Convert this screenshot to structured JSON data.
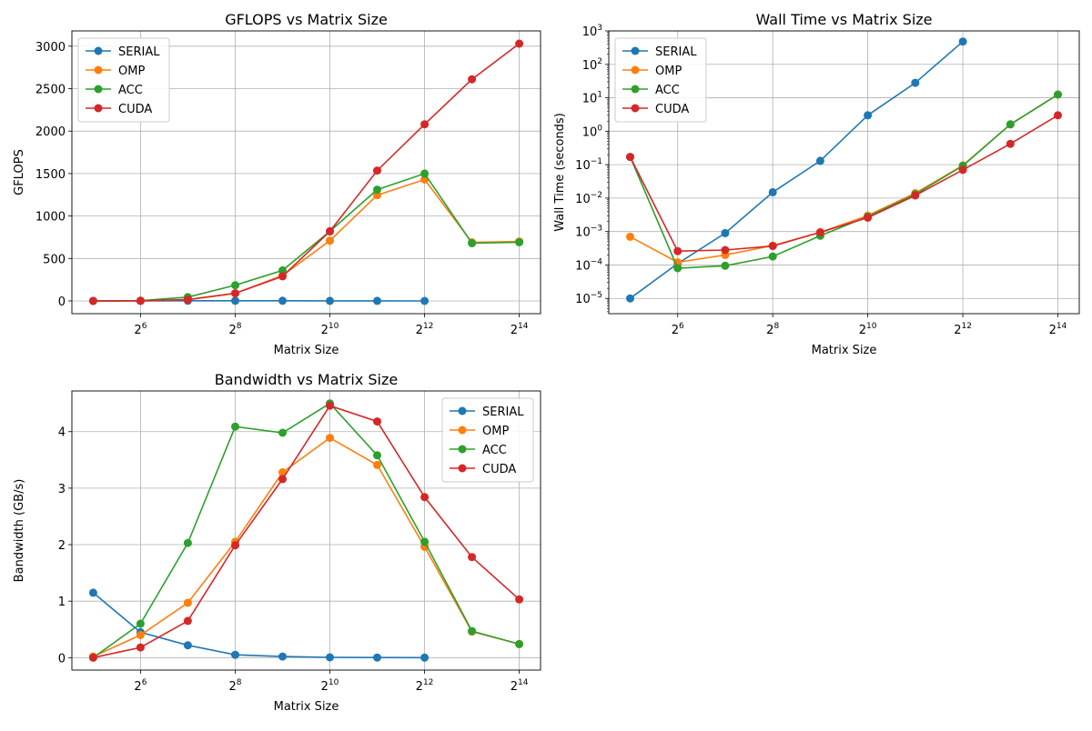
{
  "chart_data": [
    {
      "id": "gflops",
      "type": "line",
      "title": "GFLOPS vs Matrix Size",
      "xlabel": "Matrix Size",
      "ylabel": "GFLOPS",
      "xscale": "log2",
      "yscale": "linear",
      "xlim": [
        32,
        16384
      ],
      "ylim": [
        -150,
        3180
      ],
      "xticks": [
        64,
        256,
        1024,
        4096,
        16384
      ],
      "xtick_labels": [
        {
          "base": "2",
          "exp": "6"
        },
        {
          "base": "2",
          "exp": "8"
        },
        {
          "base": "2",
          "exp": "10"
        },
        {
          "base": "2",
          "exp": "12"
        },
        {
          "base": "2",
          "exp": "14"
        }
      ],
      "yticks": [
        0,
        500,
        1000,
        1500,
        2000,
        2500,
        3000
      ],
      "ytick_labels": [
        "0",
        "500",
        "1000",
        "1500",
        "2000",
        "2500",
        "3000"
      ],
      "grid": true,
      "legend": "upper-left",
      "series": [
        {
          "name": "SERIAL",
          "color": "#1f77b4",
          "points": [
            [
              32,
              0.5
            ],
            [
              64,
              1.0
            ],
            [
              128,
              2.0
            ],
            [
              256,
              2.0
            ],
            [
              512,
              2.0
            ],
            [
              1024,
              0.5
            ],
            [
              2048,
              0.5
            ],
            [
              4096,
              0.3
            ]
          ]
        },
        {
          "name": "OMP",
          "color": "#ff7f0e",
          "points": [
            [
              32,
              0
            ],
            [
              64,
              2
            ],
            [
              128,
              15
            ],
            [
              256,
              90
            ],
            [
              512,
              300
            ],
            [
              1024,
              710
            ],
            [
              2048,
              1245
            ],
            [
              4096,
              1430
            ],
            [
              8192,
              690
            ],
            [
              16384,
              700
            ]
          ]
        },
        {
          "name": "ACC",
          "color": "#2ca02c",
          "points": [
            [
              32,
              0
            ],
            [
              64,
              3
            ],
            [
              128,
              45
            ],
            [
              256,
              185
            ],
            [
              512,
              360
            ],
            [
              1024,
              820
            ],
            [
              2048,
              1310
            ],
            [
              4096,
              1500
            ],
            [
              8192,
              680
            ],
            [
              16384,
              690
            ]
          ]
        },
        {
          "name": "CUDA",
          "color": "#d62728",
          "points": [
            [
              32,
              0
            ],
            [
              64,
              2
            ],
            [
              128,
              15
            ],
            [
              256,
              90
            ],
            [
              512,
              290
            ],
            [
              1024,
              820
            ],
            [
              2048,
              1535
            ],
            [
              4096,
              2080
            ],
            [
              8192,
              2610
            ],
            [
              16384,
              3030
            ]
          ]
        }
      ]
    },
    {
      "id": "walltime",
      "type": "line",
      "title": "Wall Time vs Matrix Size",
      "xlabel": "Matrix Size",
      "ylabel": "Wall Time (seconds)",
      "xscale": "log2",
      "yscale": "log10",
      "xlim": [
        32,
        16384
      ],
      "ylim": [
        3.5e-06,
        1000
      ],
      "xticks": [
        64,
        256,
        1024,
        4096,
        16384
      ],
      "xtick_labels": [
        {
          "base": "2",
          "exp": "6"
        },
        {
          "base": "2",
          "exp": "8"
        },
        {
          "base": "2",
          "exp": "10"
        },
        {
          "base": "2",
          "exp": "12"
        },
        {
          "base": "2",
          "exp": "14"
        }
      ],
      "yticks": [
        1e-05,
        0.0001,
        0.001,
        0.01,
        0.1,
        1,
        10,
        100,
        1000
      ],
      "ytick_labels": [
        {
          "base": "10",
          "exp": "−5"
        },
        {
          "base": "10",
          "exp": "−4"
        },
        {
          "base": "10",
          "exp": "−3"
        },
        {
          "base": "10",
          "exp": "−2"
        },
        {
          "base": "10",
          "exp": "−1"
        },
        {
          "base": "10",
          "exp": "0"
        },
        {
          "base": "10",
          "exp": "1"
        },
        {
          "base": "10",
          "exp": "2"
        },
        {
          "base": "10",
          "exp": "3"
        }
      ],
      "grid": true,
      "legend": "upper-left",
      "series": [
        {
          "name": "SERIAL",
          "color": "#1f77b4",
          "points": [
            [
              32,
              1e-05
            ],
            [
              64,
              0.00011
            ],
            [
              128,
              0.0009
            ],
            [
              256,
              0.015
            ],
            [
              512,
              0.13
            ],
            [
              1024,
              3.0
            ],
            [
              2048,
              28
            ],
            [
              4096,
              480
            ]
          ]
        },
        {
          "name": "OMP",
          "color": "#ff7f0e",
          "points": [
            [
              32,
              0.0007
            ],
            [
              64,
              0.00012
            ],
            [
              128,
              0.0002
            ],
            [
              256,
              0.00038
            ],
            [
              512,
              0.00095
            ],
            [
              1024,
              0.003
            ],
            [
              2048,
              0.014
            ],
            [
              4096,
              0.095
            ],
            [
              8192,
              1.6
            ],
            [
              16384,
              12.5
            ]
          ]
        },
        {
          "name": "ACC",
          "color": "#2ca02c",
          "points": [
            [
              32,
              0.17
            ],
            [
              64,
              8e-05
            ],
            [
              128,
              9.5e-05
            ],
            [
              256,
              0.00018
            ],
            [
              512,
              0.00075
            ],
            [
              1024,
              0.0028
            ],
            [
              2048,
              0.013
            ],
            [
              4096,
              0.092
            ],
            [
              8192,
              1.6
            ],
            [
              16384,
              12.5
            ]
          ]
        },
        {
          "name": "CUDA",
          "color": "#d62728",
          "points": [
            [
              32,
              0.17
            ],
            [
              64,
              0.00026
            ],
            [
              128,
              0.00028
            ],
            [
              256,
              0.00037
            ],
            [
              512,
              0.00095
            ],
            [
              1024,
              0.0026
            ],
            [
              2048,
              0.012
            ],
            [
              4096,
              0.07
            ],
            [
              8192,
              0.42
            ],
            [
              16384,
              3.0
            ]
          ]
        }
      ]
    },
    {
      "id": "bandwidth",
      "type": "line",
      "title": "Bandwidth vs Matrix Size",
      "xlabel": "Matrix Size",
      "ylabel": "Bandwidth (GB/s)",
      "xscale": "log2",
      "yscale": "linear",
      "xlim": [
        32,
        16384
      ],
      "ylim": [
        -0.22,
        4.72
      ],
      "xticks": [
        64,
        256,
        1024,
        4096,
        16384
      ],
      "xtick_labels": [
        {
          "base": "2",
          "exp": "6"
        },
        {
          "base": "2",
          "exp": "8"
        },
        {
          "base": "2",
          "exp": "10"
        },
        {
          "base": "2",
          "exp": "12"
        },
        {
          "base": "2",
          "exp": "14"
        }
      ],
      "yticks": [
        0,
        1,
        2,
        3,
        4
      ],
      "ytick_labels": [
        "0",
        "1",
        "2",
        "3",
        "4"
      ],
      "grid": true,
      "legend": "upper-right",
      "series": [
        {
          "name": "SERIAL",
          "color": "#1f77b4",
          "points": [
            [
              32,
              1.15
            ],
            [
              64,
              0.45
            ],
            [
              128,
              0.22
            ],
            [
              256,
              0.05
            ],
            [
              512,
              0.02
            ],
            [
              1024,
              0.005
            ],
            [
              2048,
              0.002
            ],
            [
              4096,
              0.0
            ]
          ]
        },
        {
          "name": "OMP",
          "color": "#ff7f0e",
          "points": [
            [
              32,
              0.02
            ],
            [
              64,
              0.4
            ],
            [
              128,
              0.97
            ],
            [
              256,
              2.05
            ],
            [
              512,
              3.28
            ],
            [
              1024,
              3.89
            ],
            [
              2048,
              3.41
            ],
            [
              4096,
              1.96
            ],
            [
              8192,
              0.46
            ],
            [
              16384,
              0.24
            ]
          ]
        },
        {
          "name": "ACC",
          "color": "#2ca02c",
          "points": [
            [
              32,
              0.0
            ],
            [
              64,
              0.6
            ],
            [
              128,
              2.03
            ],
            [
              256,
              4.09
            ],
            [
              512,
              3.98
            ],
            [
              1024,
              4.5
            ],
            [
              2048,
              3.58
            ],
            [
              4096,
              2.05
            ],
            [
              8192,
              0.47
            ],
            [
              16384,
              0.24
            ]
          ]
        },
        {
          "name": "CUDA",
          "color": "#d62728",
          "points": [
            [
              32,
              0.0
            ],
            [
              64,
              0.18
            ],
            [
              128,
              0.65
            ],
            [
              256,
              1.99
            ],
            [
              512,
              3.16
            ],
            [
              1024,
              4.46
            ],
            [
              2048,
              4.18
            ],
            [
              4096,
              2.84
            ],
            [
              8192,
              1.78
            ],
            [
              16384,
              1.03
            ]
          ]
        }
      ]
    }
  ]
}
